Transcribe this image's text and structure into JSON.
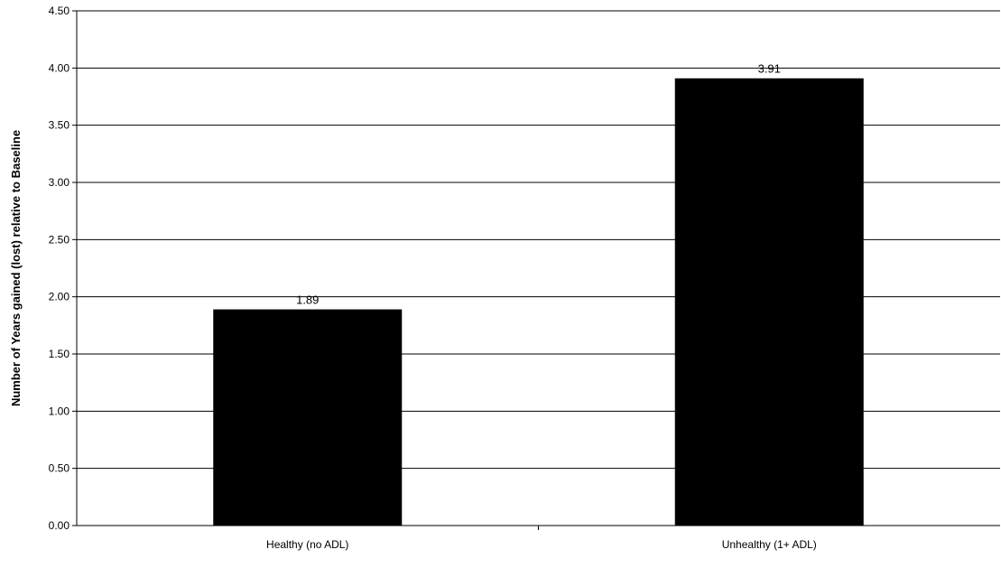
{
  "chart_data": {
    "type": "bar",
    "title": "",
    "xlabel": "",
    "ylabel": "Number of Years gained (lost) relative to Baseline",
    "categories": [
      "Healthy (no ADL)",
      "Unhealthy (1+ ADL)"
    ],
    "values": [
      1.89,
      3.91
    ],
    "data_labels": [
      "1.89",
      "3.91"
    ],
    "ylim": [
      0,
      4.5
    ],
    "yticks": [
      "0.00",
      "0.50",
      "1.00",
      "1.50",
      "2.00",
      "2.50",
      "3.00",
      "3.50",
      "4.00",
      "4.50"
    ],
    "grid": true,
    "bar_color": "#000000",
    "legend": "none"
  }
}
